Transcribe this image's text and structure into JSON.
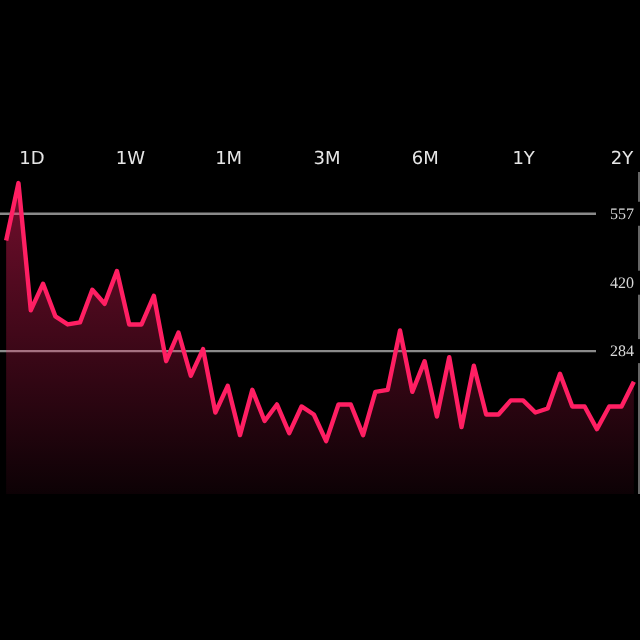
{
  "chart_data": {
    "type": "area",
    "categories": [
      null,
      null,
      null,
      null,
      null,
      null,
      null,
      null,
      null,
      null,
      null,
      null,
      null,
      null,
      null,
      null,
      null,
      null,
      null,
      null,
      null,
      null,
      null,
      null,
      null,
      null,
      null,
      null,
      null,
      null,
      null,
      null,
      null,
      null,
      null,
      null,
      null,
      null,
      null,
      null,
      null,
      null,
      null,
      null,
      null,
      null,
      null,
      null,
      null,
      null,
      null,
      null
    ],
    "series": [
      {
        "color": "#ff1f63",
        "values": [
          504,
          618,
          365,
          418,
          353,
          337,
          341,
          406,
          378,
          443,
          337,
          337,
          394,
          264,
          321,
          235,
          288,
          162,
          215,
          117,
          207,
          145,
          178,
          121,
          174,
          158,
          105,
          178,
          178,
          117,
          203,
          207,
          325,
          203,
          264,
          154,
          272,
          133,
          255,
          158,
          158,
          186,
          186,
          162,
          170,
          239,
          174,
          174,
          129,
          174,
          174,
          223
        ]
      }
    ],
    "ylim": [
      0,
      640
    ],
    "yticks": [
      557,
      420,
      284
    ],
    "ref_lines": [
      {
        "axis": "y",
        "value": 557,
        "color": "#8a8a8a"
      },
      {
        "axis": "y",
        "value": 284,
        "color": "#8a8a8a"
      }
    ],
    "annotations": [
      "1D",
      "1W",
      "1M",
      "3M",
      "6M",
      "1Y",
      "2Y"
    ],
    "grid": false
  }
}
